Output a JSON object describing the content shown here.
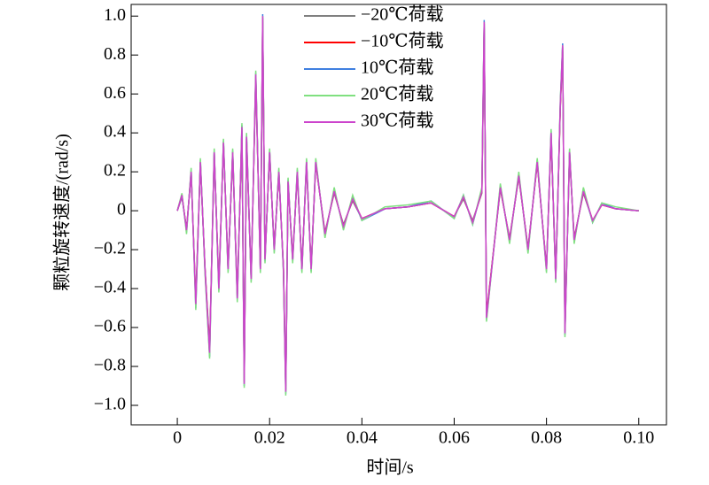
{
  "chart_data": {
    "type": "line",
    "xlabel": "时间/s",
    "ylabel": "颗粒旋转速度/(rad/s)",
    "x": [
      0,
      0.001,
      0.002,
      0.003,
      0.004,
      0.005,
      0.006,
      0.007,
      0.008,
      0.009,
      0.01,
      0.011,
      0.012,
      0.013,
      0.014,
      0.0145,
      0.015,
      0.016,
      0.017,
      0.018,
      0.0185,
      0.019,
      0.02,
      0.021,
      0.022,
      0.023,
      0.0235,
      0.024,
      0.025,
      0.026,
      0.027,
      0.028,
      0.029,
      0.03,
      0.032,
      0.034,
      0.036,
      0.038,
      0.04,
      0.045,
      0.05,
      0.055,
      0.06,
      0.062,
      0.064,
      0.066,
      0.0665,
      0.067,
      0.07,
      0.072,
      0.074,
      0.076,
      0.078,
      0.08,
      0.081,
      0.082,
      0.083,
      0.0835,
      0.084,
      0.085,
      0.086,
      0.088,
      0.09,
      0.092,
      0.095,
      0.1
    ],
    "series": [
      {
        "name": "−20℃荷载",
        "color": "#808080",
        "values": [
          0,
          0.07,
          -0.09,
          0.19,
          -0.46,
          0.24,
          -0.29,
          -0.7,
          0.29,
          -0.38,
          0.34,
          -0.29,
          0.29,
          -0.43,
          0.41,
          -0.86,
          0.36,
          -0.34,
          0.68,
          -0.29,
          0.97,
          -0.24,
          0.29,
          -0.19,
          0.19,
          -0.29,
          -0.9,
          0.14,
          -0.24,
          0.19,
          -0.29,
          0.24,
          -0.29,
          0.24,
          -0.11,
          0.09,
          -0.07,
          0.05,
          -0.04,
          0.01,
          0.02,
          0.04,
          -0.03,
          0.06,
          -0.05,
          0.09,
          0.94,
          -0.53,
          0.11,
          -0.14,
          0.17,
          -0.19,
          0.24,
          -0.29,
          0.38,
          -0.34,
          0.53,
          0.82,
          -0.6,
          0.29,
          -0.14,
          0.09,
          -0.05,
          0.03,
          0.01,
          0
        ]
      },
      {
        "name": "−10℃荷载",
        "color": "#ff0000",
        "values": [
          0,
          0.08,
          -0.1,
          0.2,
          -0.47,
          0.25,
          -0.3,
          -0.72,
          0.3,
          -0.39,
          0.35,
          -0.3,
          0.3,
          -0.44,
          0.42,
          -0.88,
          0.37,
          -0.35,
          0.69,
          -0.3,
          0.99,
          -0.25,
          0.3,
          -0.2,
          0.2,
          -0.3,
          -0.92,
          0.15,
          -0.25,
          0.2,
          -0.3,
          0.25,
          -0.3,
          0.25,
          -0.12,
          0.1,
          -0.08,
          0.06,
          -0.04,
          0.01,
          0.02,
          0.04,
          -0.03,
          0.07,
          -0.06,
          0.1,
          0.96,
          -0.54,
          0.12,
          -0.15,
          0.18,
          -0.2,
          0.25,
          -0.3,
          0.39,
          -0.35,
          0.54,
          0.84,
          -0.62,
          0.3,
          -0.15,
          0.1,
          -0.05,
          0.03,
          0.01,
          0
        ]
      },
      {
        "name": "10℃荷载",
        "color": "#3f7fe0",
        "values": [
          0,
          0.08,
          -0.11,
          0.21,
          -0.5,
          0.26,
          -0.31,
          -0.75,
          0.31,
          -0.41,
          0.36,
          -0.31,
          0.31,
          -0.46,
          0.44,
          -0.9,
          0.39,
          -0.36,
          0.71,
          -0.31,
          1.01,
          -0.26,
          0.31,
          -0.21,
          0.21,
          -0.31,
          -0.94,
          0.16,
          -0.26,
          0.21,
          -0.31,
          0.26,
          -0.31,
          0.26,
          -0.13,
          0.11,
          -0.09,
          0.07,
          -0.05,
          0.01,
          0.02,
          0.05,
          -0.04,
          0.08,
          -0.07,
          0.11,
          0.98,
          -0.56,
          0.13,
          -0.16,
          0.19,
          -0.21,
          0.26,
          -0.31,
          0.41,
          -0.36,
          0.56,
          0.86,
          -0.64,
          0.31,
          -0.16,
          0.11,
          -0.06,
          0.04,
          0.01,
          0
        ]
      },
      {
        "name": "20℃荷载",
        "color": "#80e080",
        "values": [
          0,
          0.09,
          -0.12,
          0.22,
          -0.51,
          0.27,
          -0.32,
          -0.76,
          0.32,
          -0.42,
          0.37,
          -0.32,
          0.32,
          -0.47,
          0.45,
          -0.91,
          0.4,
          -0.37,
          0.72,
          -0.32,
          1.0,
          -0.27,
          0.32,
          -0.22,
          0.22,
          -0.32,
          -0.95,
          0.17,
          -0.27,
          0.22,
          -0.32,
          0.27,
          -0.32,
          0.27,
          -0.14,
          0.12,
          -0.1,
          0.08,
          -0.05,
          0.02,
          0.03,
          0.05,
          -0.04,
          0.08,
          -0.07,
          0.12,
          0.97,
          -0.57,
          0.14,
          -0.17,
          0.2,
          -0.22,
          0.27,
          -0.32,
          0.42,
          -0.37,
          0.57,
          0.85,
          -0.65,
          0.32,
          -0.17,
          0.12,
          -0.06,
          0.04,
          0.02,
          0
        ]
      },
      {
        "name": "30℃荷载",
        "color": "#cc44cc",
        "values": [
          0,
          0.08,
          -0.1,
          0.2,
          -0.48,
          0.25,
          -0.3,
          -0.73,
          0.3,
          -0.4,
          0.35,
          -0.3,
          0.3,
          -0.45,
          0.43,
          -0.89,
          0.38,
          -0.35,
          0.7,
          -0.3,
          1.0,
          -0.25,
          0.3,
          -0.2,
          0.2,
          -0.3,
          -0.93,
          0.15,
          -0.25,
          0.2,
          -0.3,
          0.25,
          -0.3,
          0.25,
          -0.12,
          0.1,
          -0.08,
          0.06,
          -0.04,
          0.01,
          0.02,
          0.04,
          -0.03,
          0.07,
          -0.06,
          0.1,
          0.97,
          -0.55,
          0.12,
          -0.15,
          0.18,
          -0.2,
          0.25,
          -0.3,
          0.4,
          -0.35,
          0.55,
          0.85,
          -0.63,
          0.3,
          -0.15,
          0.1,
          -0.05,
          0.03,
          0.01,
          0
        ]
      }
    ],
    "xlim": [
      -0.01,
      0.106
    ],
    "ylim": [
      -1.1,
      1.06
    ],
    "xticks": [
      0,
      0.02,
      0.04,
      0.06,
      0.08,
      {
        "value": 0.1,
        "label": "0.10"
      }
    ],
    "yticks": [
      {
        "value": 1.0,
        "label": "1.0"
      },
      0.8,
      0.6,
      0.4,
      0.2,
      0,
      {
        "value": -0.2,
        "label": "−0.2"
      },
      {
        "value": -0.4,
        "label": "−0.4"
      },
      {
        "value": -0.6,
        "label": "−0.6"
      },
      {
        "value": -0.8,
        "label": "−0.8"
      },
      {
        "value": -1.0,
        "label": "−1.0"
      }
    ],
    "legend": "upper center",
    "grid": false
  }
}
